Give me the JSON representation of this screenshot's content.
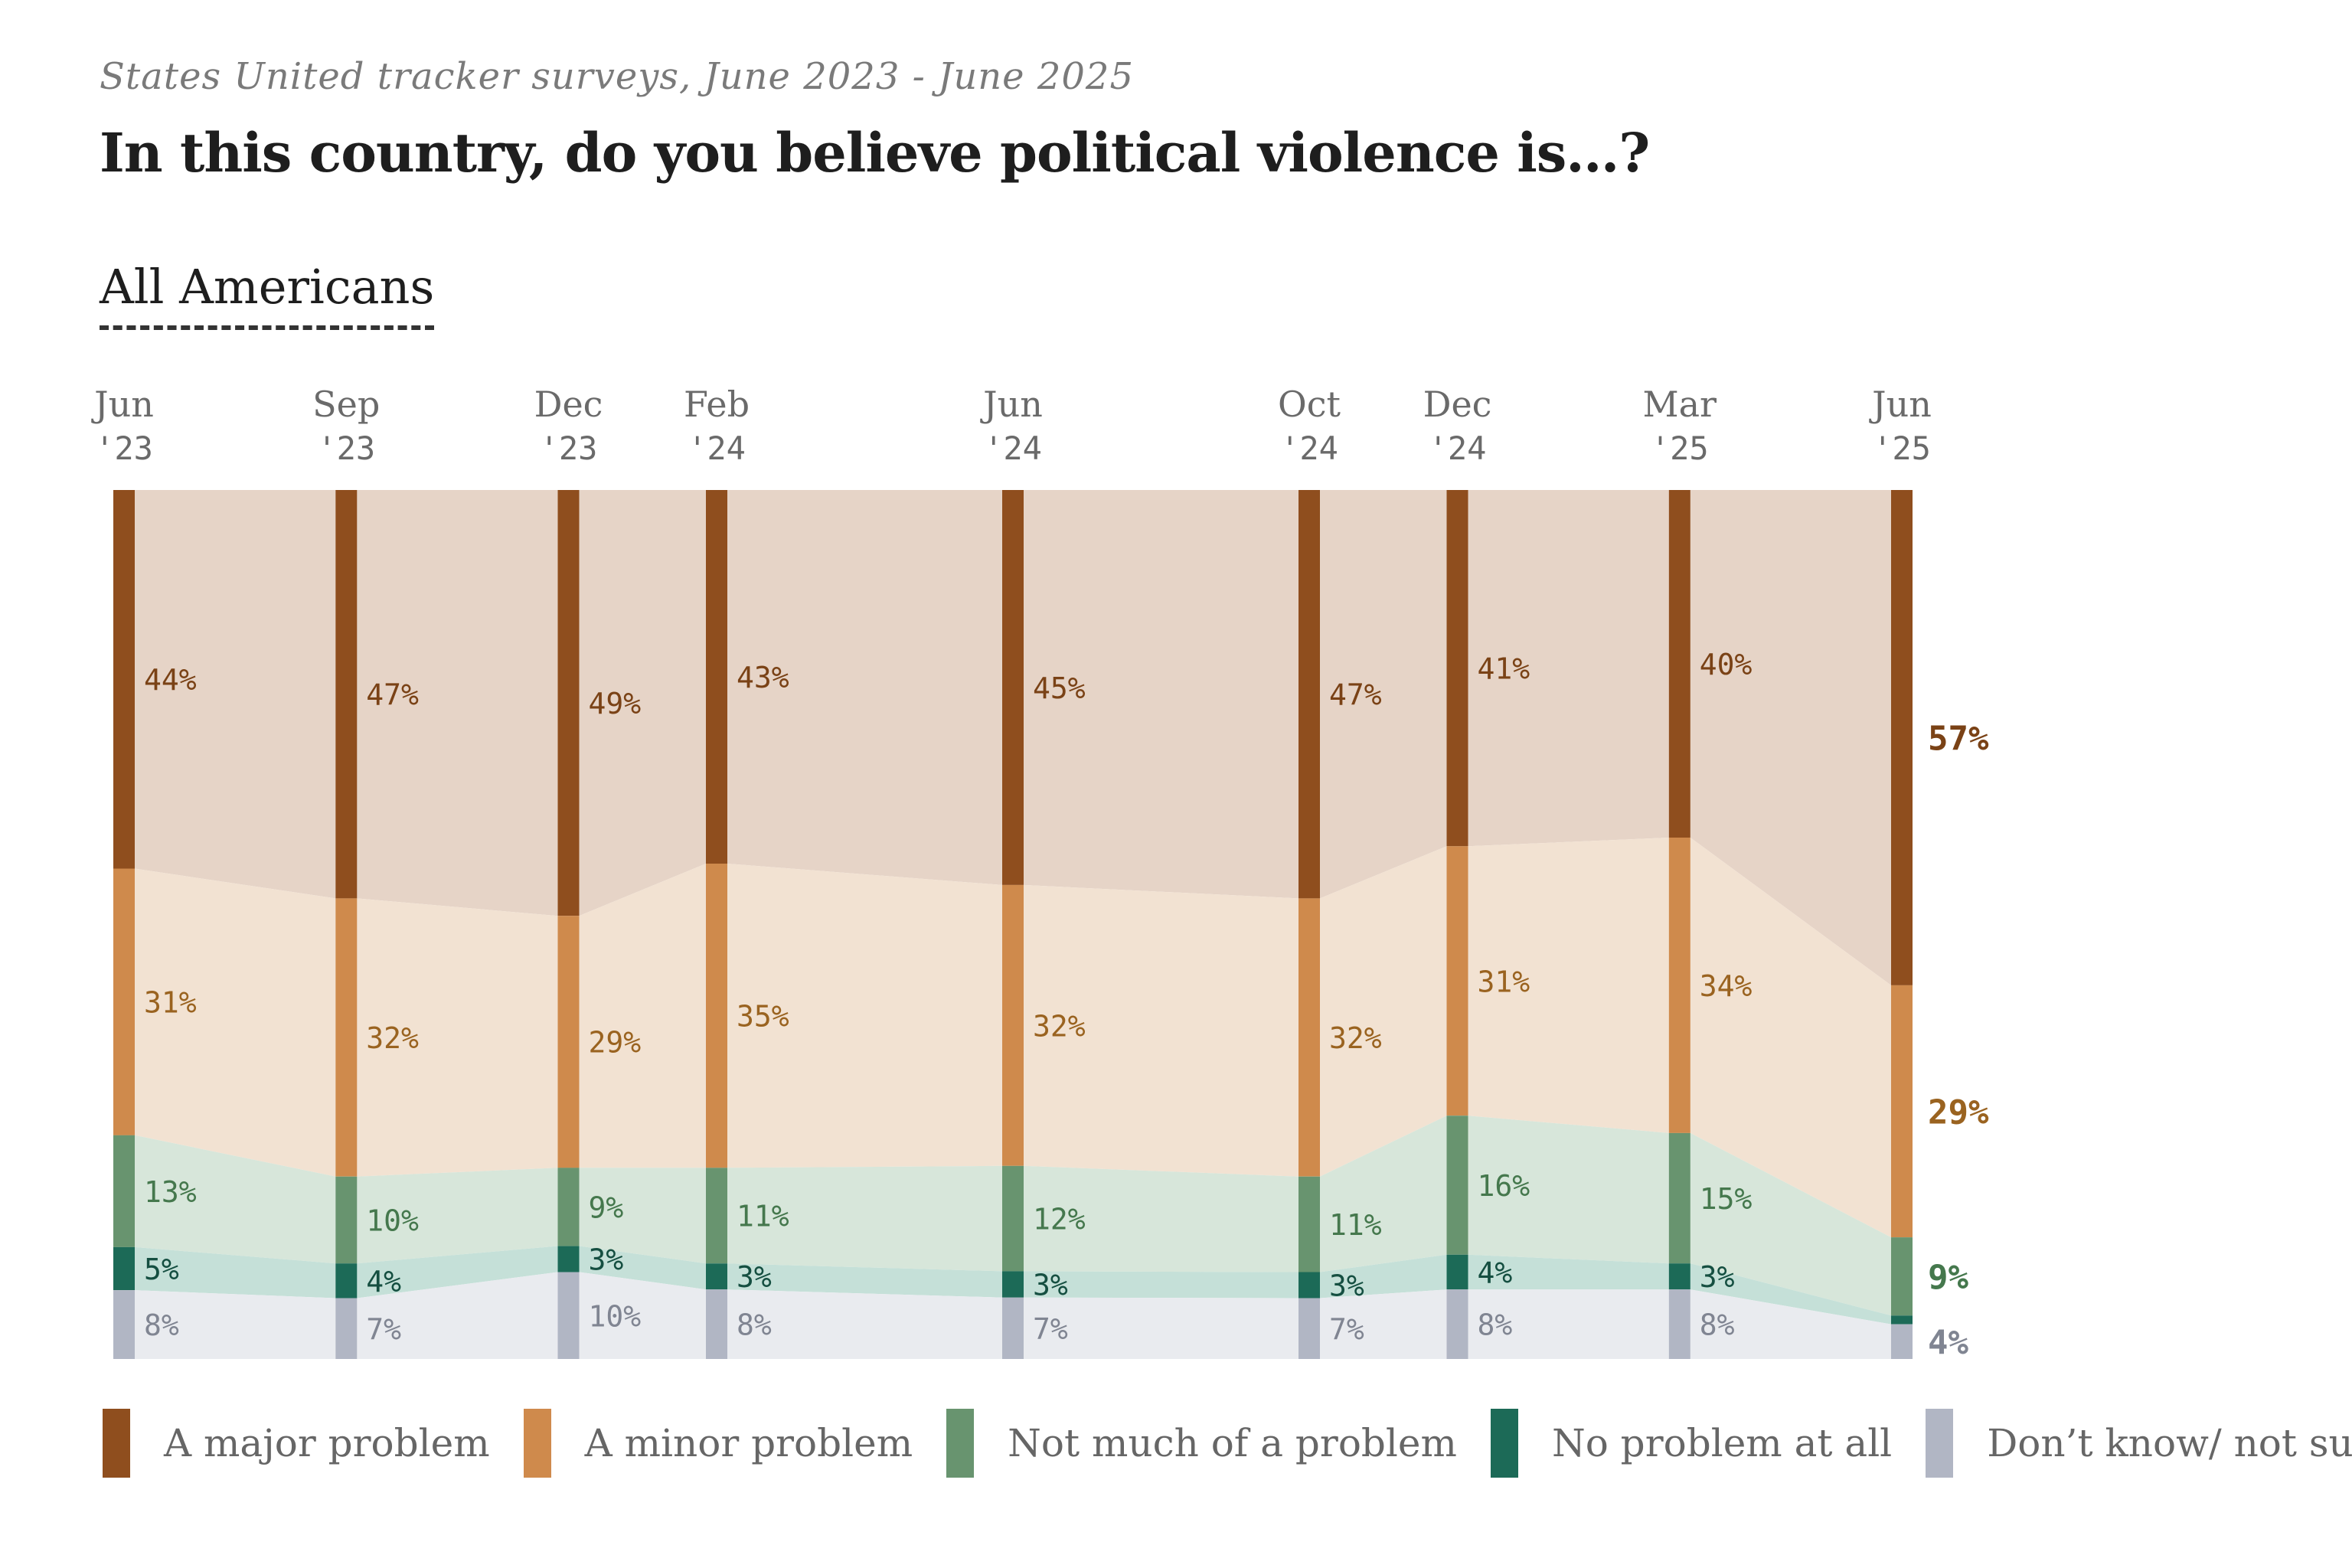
{
  "header": {
    "subtitle": "States United tracker surveys, June 2023 - June 2025",
    "title": "In this country, do you believe political violence is…?",
    "tab_label": "All Americans"
  },
  "colors": {
    "major": "#8f4e1e",
    "minor": "#cf8a4c",
    "not_much": "#68946f",
    "none": "#1c6a57",
    "unsure": "#b1b6c4",
    "major_band": "#e6d4c7",
    "minor_band": "#f2e2d2",
    "not_much_band": "#d7e6da",
    "none_band": "#c5e0d8",
    "unsure_band": "#e9ebef",
    "major_label": "#7a4216",
    "minor_label": "#9a6320",
    "not_much_label": "#45784d",
    "none_label": "#154f41",
    "unsure_label": "#808592"
  },
  "chart_data": {
    "type": "area",
    "stacked": true,
    "normalized": "100%",
    "x": [
      "Jun '23",
      "Sep '23",
      "Dec '23",
      "Feb '24",
      "Jun '24",
      "Oct '24",
      "Dec '24",
      "Mar '25",
      "Jun '25"
    ],
    "x_labels": [
      {
        "month": "Jun",
        "year": "'23"
      },
      {
        "month": "Sep",
        "year": "'23"
      },
      {
        "month": "Dec",
        "year": "'23"
      },
      {
        "month": "Feb",
        "year": "'24"
      },
      {
        "month": "Jun",
        "year": "'24"
      },
      {
        "month": "Oct",
        "year": "'24"
      },
      {
        "month": "Dec",
        "year": "'24"
      },
      {
        "month": "Mar",
        "year": "'25"
      },
      {
        "month": "Jun",
        "year": "'25"
      }
    ],
    "x_dates": [
      "2023-06",
      "2023-09",
      "2023-12",
      "2024-02",
      "2024-06",
      "2024-10",
      "2024-12",
      "2025-03",
      "2025-06"
    ],
    "series": [
      {
        "name": "A major problem",
        "key": "major",
        "values": [
          44,
          47,
          49,
          43,
          45,
          47,
          41,
          40,
          57
        ],
        "labels": [
          "44%",
          "47%",
          "49%",
          "43%",
          "45%",
          "47%",
          "41%",
          "40%",
          "57%"
        ]
      },
      {
        "name": "A minor problem",
        "key": "minor",
        "values": [
          31,
          32,
          29,
          35,
          32,
          32,
          31,
          34,
          29
        ],
        "labels": [
          "31%",
          "32%",
          "29%",
          "35%",
          "32%",
          "32%",
          "31%",
          "34%",
          "29%"
        ]
      },
      {
        "name": "Not much of a problem",
        "key": "not_much",
        "values": [
          13,
          10,
          9,
          11,
          12,
          11,
          16,
          15,
          9
        ],
        "labels": [
          "13%",
          "10%",
          "9%",
          "11%",
          "12%",
          "11%",
          "16%",
          "15%",
          "9%"
        ]
      },
      {
        "name": "No problem at all",
        "key": "none",
        "values": [
          5,
          4,
          3,
          3,
          3,
          3,
          4,
          3,
          1
        ],
        "labels": [
          "5%",
          "4%",
          "3%",
          "3%",
          "3%",
          "3%",
          "4%",
          "3%",
          ""
        ]
      },
      {
        "name": "Don’t know/ not sure",
        "key": "unsure",
        "values": [
          8,
          7,
          10,
          8,
          7,
          7,
          8,
          8,
          4
        ],
        "labels": [
          "8%",
          "7%",
          "10%",
          "8%",
          "7%",
          "7%",
          "8%",
          "8%",
          "4%"
        ]
      }
    ],
    "ylim": [
      0,
      100
    ],
    "grid": false,
    "legend_position": "bottom"
  }
}
